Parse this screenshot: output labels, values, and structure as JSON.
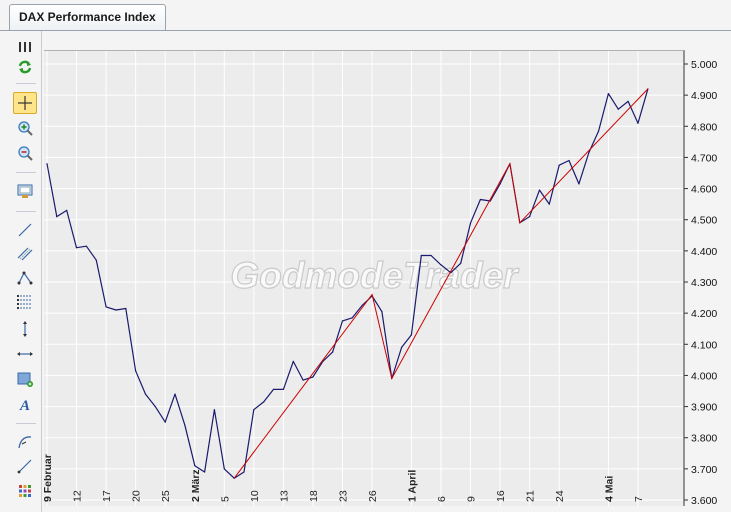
{
  "tab": {
    "title": "DAX Performance Index"
  },
  "toolbar": {
    "tools": [
      {
        "name": "columns-icon",
        "active": false
      },
      {
        "name": "refresh-icon",
        "active": false
      },
      {
        "name": "crosshair-icon",
        "active": true
      },
      {
        "name": "zoom-in-icon",
        "active": false
      },
      {
        "name": "zoom-out-icon",
        "active": false
      },
      {
        "name": "chart-window-icon",
        "active": false
      },
      {
        "name": "trendline-icon",
        "active": false
      },
      {
        "name": "channel-icon",
        "active": false
      },
      {
        "name": "polyline-icon",
        "active": false
      },
      {
        "name": "fibonacci-icon",
        "active": false
      },
      {
        "name": "vertical-line-icon",
        "active": false
      },
      {
        "name": "horizontal-line-icon",
        "active": false
      },
      {
        "name": "rectangle-icon",
        "active": false
      },
      {
        "name": "text-icon",
        "active": false
      },
      {
        "name": "arc-icon",
        "active": false
      },
      {
        "name": "ray-icon",
        "active": false
      },
      {
        "name": "grid-icon",
        "active": false
      }
    ]
  },
  "watermark": "GodmodeTrader",
  "chart_data": {
    "type": "line",
    "ylim": [
      3600,
      5030
    ],
    "y_ticks": [
      "5.000",
      "4.900",
      "4.800",
      "4.700",
      "4.600",
      "4.500",
      "4.400",
      "4.300",
      "4.200",
      "4.100",
      "4.000",
      "3.900",
      "3.800",
      "3.700",
      "3.600"
    ],
    "grid": true,
    "x_labels": [
      {
        "i": 0,
        "text": "9 Februar",
        "bold": true
      },
      {
        "i": 3,
        "text": "12"
      },
      {
        "i": 6,
        "text": "17"
      },
      {
        "i": 9,
        "text": "20"
      },
      {
        "i": 12,
        "text": "25"
      },
      {
        "i": 15,
        "text": "2 März",
        "bold": true
      },
      {
        "i": 18,
        "text": "5"
      },
      {
        "i": 21,
        "text": "10"
      },
      {
        "i": 24,
        "text": "13"
      },
      {
        "i": 27,
        "text": "18"
      },
      {
        "i": 30,
        "text": "23"
      },
      {
        "i": 33,
        "text": "26"
      },
      {
        "i": 37,
        "text": "1 April",
        "bold": true
      },
      {
        "i": 40,
        "text": "6"
      },
      {
        "i": 43,
        "text": "9"
      },
      {
        "i": 46,
        "text": "16"
      },
      {
        "i": 49,
        "text": "21"
      },
      {
        "i": 52,
        "text": "24"
      },
      {
        "i": 57,
        "text": "4 Mai",
        "bold": true
      },
      {
        "i": 60,
        "text": "7"
      }
    ],
    "series": [
      {
        "color": "#1a1a6e",
        "values": [
          4680,
          4510,
          4530,
          4410,
          4415,
          4370,
          4220,
          4210,
          4215,
          4015,
          3940,
          3900,
          3850,
          3940,
          3840,
          3710,
          3690,
          3890,
          3700,
          3670,
          3690,
          3890,
          3915,
          3955,
          3955,
          4045,
          3985,
          3995,
          4045,
          4075,
          4175,
          4185,
          4225,
          4255,
          4205,
          3990,
          4090,
          4130,
          4385,
          4385,
          4355,
          4330,
          4360,
          4490,
          4565,
          4560,
          4615,
          4680,
          4490,
          4510,
          4595,
          4550,
          4675,
          4690,
          4615,
          4715,
          4785,
          4905,
          4855,
          4880,
          4810,
          4920
        ]
      }
    ],
    "trend_lines": [
      {
        "color": "#cc0000",
        "points": [
          [
            19,
            3670
          ],
          [
            33,
            4260
          ],
          [
            35,
            3990
          ],
          [
            47,
            4680
          ],
          [
            48,
            4490
          ],
          [
            61,
            4920
          ]
        ]
      }
    ]
  }
}
